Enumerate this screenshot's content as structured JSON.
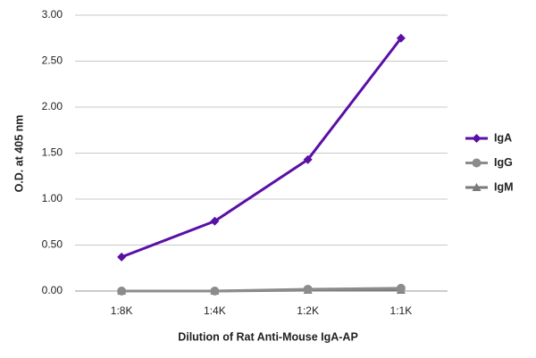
{
  "chart_data": {
    "type": "line",
    "x_label": "Dilution of Rat Anti-Mouse IgA-AP",
    "y_label": "O.D. at 405 nm",
    "categories": [
      "1:8K",
      "1:4K",
      "1:2K",
      "1:1K"
    ],
    "series": [
      {
        "name": "IgA",
        "color": "#5a0fa6",
        "marker": "diamond",
        "values": [
          0.37,
          0.76,
          1.43,
          2.75
        ]
      },
      {
        "name": "IgG",
        "color": "#8c8c8c",
        "marker": "circle",
        "values": [
          0.0,
          0.0,
          0.02,
          0.03
        ]
      },
      {
        "name": "IgM",
        "color": "#7a7a7a",
        "marker": "triangle",
        "values": [
          0.0,
          0.0,
          0.01,
          0.01
        ]
      }
    ],
    "ylim": [
      0,
      3
    ],
    "yticks": [
      {
        "value": 0,
        "label": "0.00"
      },
      {
        "value": 0.5,
        "label": "0.50"
      },
      {
        "value": 1,
        "label": "1.00"
      },
      {
        "value": 1.5,
        "label": "1.50"
      },
      {
        "value": 2,
        "label": "2.00"
      },
      {
        "value": 2.5,
        "label": "2.50"
      },
      {
        "value": 3,
        "label": "3.00"
      }
    ],
    "grid": true,
    "legend": "right"
  }
}
